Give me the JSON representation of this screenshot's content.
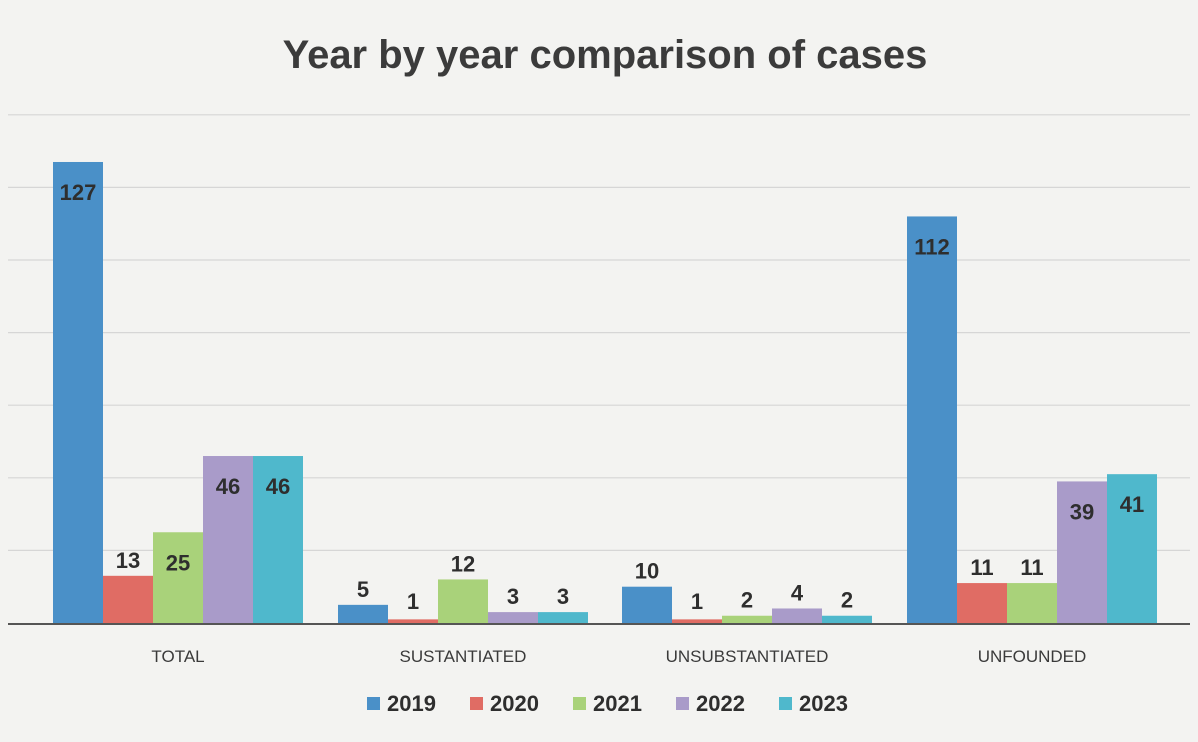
{
  "chart_data": {
    "type": "bar",
    "title": "Year by year comparison of cases",
    "xlabel": "",
    "ylabel": "",
    "categories": [
      "TOTAL",
      "SUSTANTIATED",
      "UNSUBSTANTIATED",
      "UNFOUNDED"
    ],
    "series": [
      {
        "name": "2019",
        "color": "#4a90c8",
        "values": [
          127,
          5,
          10,
          112
        ]
      },
      {
        "name": "2020",
        "color": "#e06c64",
        "values": [
          13,
          1,
          1,
          11
        ]
      },
      {
        "name": "2021",
        "color": "#a9d27a",
        "values": [
          25,
          12,
          2,
          11
        ]
      },
      {
        "name": "2022",
        "color": "#a99bc9",
        "values": [
          46,
          3,
          4,
          39
        ]
      },
      {
        "name": "2023",
        "color": "#4fb8cc",
        "values": [
          46,
          3,
          2,
          41
        ]
      }
    ],
    "ylim": [
      0,
      140
    ],
    "grid": true,
    "legend_position": "bottom"
  }
}
